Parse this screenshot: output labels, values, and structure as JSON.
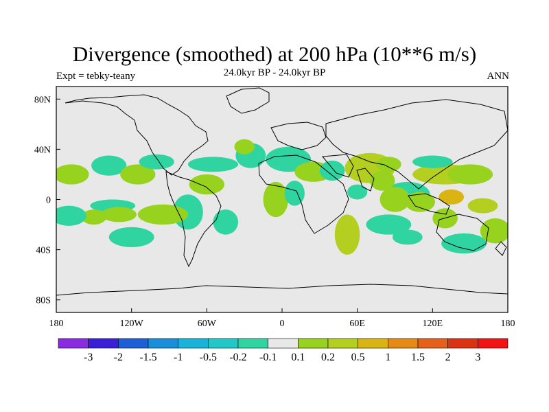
{
  "title": "Divergence (smoothed) at 200 hPa (10**6 m/s)",
  "subtitle_left": "Expt = tebky-teany",
  "subtitle_center": "24.0kyr BP - 24.0kyr BP",
  "subtitle_right": "ANN",
  "axes": {
    "lat_labels": [
      "80N",
      "40N",
      "0",
      "40S",
      "80S"
    ],
    "lat_values": [
      80,
      40,
      0,
      -40,
      -80
    ],
    "lon_labels": [
      "180",
      "120W",
      "60W",
      "0",
      "60E",
      "120E",
      "180"
    ],
    "lon_values": [
      -180,
      -120,
      -60,
      0,
      60,
      120,
      180
    ]
  },
  "colorbar": {
    "labels": [
      "-3",
      "-2",
      "-1.5",
      "-1",
      "-0.5",
      "-0.2",
      "-0.1",
      "0.1",
      "0.2",
      "0.5",
      "1",
      "1.5",
      "2",
      "3"
    ],
    "colors": [
      "#8a2be2",
      "#3b1fd6",
      "#1f5fd6",
      "#1a8fd9",
      "#19b3d9",
      "#22c8c8",
      "#2fd4a0",
      "#e8e8e8",
      "#96d21e",
      "#b4cf20",
      "#d9b414",
      "#e58a14",
      "#e5601a",
      "#dc3214",
      "#f01414"
    ]
  },
  "colors": {
    "background": "#e8e8e8",
    "coast": "#000000"
  },
  "regions": [
    {
      "lon": 52,
      "lat": -28,
      "rx": 10,
      "ry": 16,
      "cls": 2
    },
    {
      "lon": -138,
      "lat": 27,
      "rx": 14,
      "ry": 8,
      "cls": -1
    },
    {
      "lon": -168,
      "lat": 20,
      "rx": 14,
      "ry": 8,
      "cls": 1
    },
    {
      "lon": -135,
      "lat": -5,
      "rx": 18,
      "ry": 5,
      "cls": -1
    },
    {
      "lon": -150,
      "lat": -14,
      "rx": 10,
      "ry": 6,
      "cls": 1
    },
    {
      "lon": -170,
      "lat": -13,
      "rx": 14,
      "ry": 8,
      "cls": -1
    },
    {
      "lon": -115,
      "lat": 20,
      "rx": 14,
      "ry": 8,
      "cls": 1
    },
    {
      "lon": -100,
      "lat": 30,
      "rx": 14,
      "ry": 6,
      "cls": -1
    },
    {
      "lon": -55,
      "lat": 28,
      "rx": 20,
      "ry": 6,
      "cls": -1
    },
    {
      "lon": -25,
      "lat": 35,
      "rx": 12,
      "ry": 10,
      "cls": -1
    },
    {
      "lon": -30,
      "lat": 42,
      "rx": 8,
      "ry": 6,
      "cls": 1
    },
    {
      "lon": 5,
      "lat": 32,
      "rx": 18,
      "ry": 10,
      "cls": -1
    },
    {
      "lon": 25,
      "lat": 22,
      "rx": 15,
      "ry": 8,
      "cls": 1
    },
    {
      "lon": 40,
      "lat": 23,
      "rx": 10,
      "ry": 8,
      "cls": -1
    },
    {
      "lon": 70,
      "lat": 25,
      "rx": 20,
      "ry": 12,
      "cls": 2
    },
    {
      "lon": 85,
      "lat": 28,
      "rx": 10,
      "ry": 6,
      "cls": 1
    },
    {
      "lon": 100,
      "lat": 4,
      "rx": 18,
      "ry": 10,
      "cls": -1
    },
    {
      "lon": 110,
      "lat": -2,
      "rx": 12,
      "ry": 8,
      "cls": 1
    },
    {
      "lon": 130,
      "lat": 20,
      "rx": 26,
      "ry": 8,
      "cls": 2
    },
    {
      "lon": 150,
      "lat": 20,
      "rx": 18,
      "ry": 8,
      "cls": 1
    },
    {
      "lon": 135,
      "lat": 2,
      "rx": 10,
      "ry": 6,
      "cls": 3
    },
    {
      "lon": 160,
      "lat": -5,
      "rx": 12,
      "ry": 6,
      "cls": 2
    },
    {
      "lon": 120,
      "lat": 30,
      "rx": 16,
      "ry": 5,
      "cls": -1
    },
    {
      "lon": -75,
      "lat": -10,
      "rx": 12,
      "ry": 14,
      "cls": -1
    },
    {
      "lon": -45,
      "lat": -18,
      "rx": 10,
      "ry": 10,
      "cls": -1
    },
    {
      "lon": -60,
      "lat": 12,
      "rx": 14,
      "ry": 8,
      "cls": 1
    },
    {
      "lon": -95,
      "lat": -12,
      "rx": 20,
      "ry": 8,
      "cls": 1
    },
    {
      "lon": -120,
      "lat": -30,
      "rx": 18,
      "ry": 8,
      "cls": -1
    },
    {
      "lon": -130,
      "lat": -12,
      "rx": 14,
      "ry": 6,
      "cls": 1
    },
    {
      "lon": -5,
      "lat": 0,
      "rx": 10,
      "ry": 14,
      "cls": 1
    },
    {
      "lon": 10,
      "lat": 5,
      "rx": 8,
      "ry": 10,
      "cls": -1
    },
    {
      "lon": 80,
      "lat": 15,
      "rx": 10,
      "ry": 8,
      "cls": 1
    },
    {
      "lon": 85,
      "lat": -20,
      "rx": 18,
      "ry": 8,
      "cls": -1
    },
    {
      "lon": 130,
      "lat": -15,
      "rx": 10,
      "ry": 8,
      "cls": 1
    },
    {
      "lon": 170,
      "lat": -25,
      "rx": 12,
      "ry": 10,
      "cls": 1
    },
    {
      "lon": 145,
      "lat": -35,
      "rx": 18,
      "ry": 8,
      "cls": -1
    },
    {
      "lon": 90,
      "lat": 0,
      "rx": 12,
      "ry": 10,
      "cls": 1
    },
    {
      "lon": 60,
      "lat": 6,
      "rx": 8,
      "ry": 6,
      "cls": -1
    },
    {
      "lon": 100,
      "lat": -30,
      "rx": 12,
      "ry": 6,
      "cls": -1
    }
  ]
}
